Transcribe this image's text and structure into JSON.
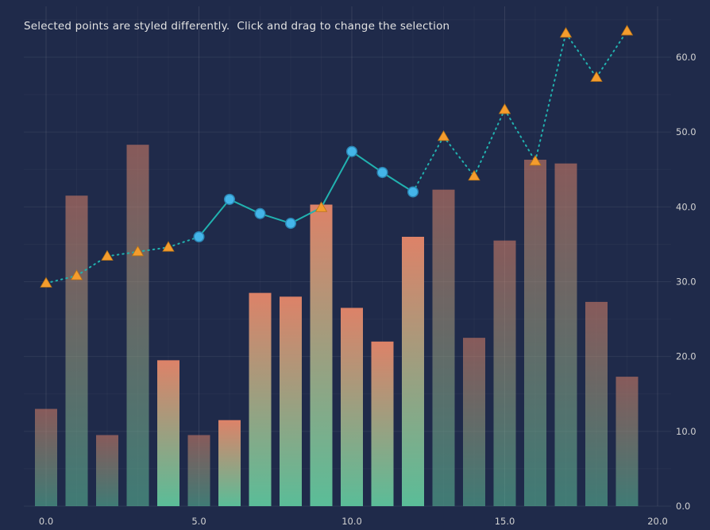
{
  "title": "Selected points are styled differently.  Click and drag to change the selection",
  "colors": {
    "background": "#1f2a4a",
    "grid_major": "rgba(255,255,255,0.07)",
    "grid_minor": "rgba(255,255,255,0.03)",
    "bar_top": "#dd8268",
    "bar_bottom": "#5abd98",
    "line": "#21b2b0",
    "circle_fill": "#44b5e9",
    "circle_stroke": "#2b86b4",
    "triangle_fill": "#f49c2d",
    "triangle_stroke": "#b87417",
    "axis_text": "#d2d2d2",
    "title_text": "#e2e2e2"
  },
  "chart_data": {
    "type": "bar",
    "title": "Selected points are styled differently.  Click and drag to change the selection",
    "xlabel": "",
    "ylabel": "",
    "xlim": [
      -1.5,
      21.7
    ],
    "ylim": [
      0,
      67.5
    ],
    "grid": true,
    "legend": false,
    "x": [
      0,
      1,
      2,
      3,
      4,
      5,
      6,
      7,
      8,
      9,
      10,
      11,
      12,
      13,
      14,
      15,
      16,
      17,
      18,
      19
    ],
    "bars": {
      "values": [
        13,
        41.5,
        9.5,
        48.3,
        19.5,
        9.5,
        11.5,
        28.5,
        28,
        40.3,
        26.5,
        22,
        36,
        42.3,
        22.5,
        35.5,
        46.3,
        45.8,
        27.3,
        17.3
      ],
      "selected_indices": [
        4,
        6,
        7,
        8,
        9,
        10,
        11,
        12
      ],
      "unselected_opacity": 0.55
    },
    "line": {
      "type": "line+markers",
      "values": [
        29.8,
        30.8,
        33.4,
        34.0,
        34.6,
        36.0,
        41.0,
        39.1,
        37.8,
        39.9,
        47.4,
        44.6,
        42.0,
        49.4,
        44.1,
        53.0,
        46.1,
        63.2,
        57.3,
        63.5
      ],
      "circle_marker_indices": [
        5,
        6,
        7,
        8,
        10,
        11,
        12
      ],
      "triangle_marker_indices": [
        0,
        1,
        2,
        3,
        4,
        9,
        13,
        14,
        15,
        16,
        17,
        18,
        19
      ],
      "solid_segment_start": 5,
      "solid_segment_end": 12
    },
    "x_ticks": [
      {
        "value": 0,
        "label": "0.0"
      },
      {
        "value": 5,
        "label": "5.0"
      },
      {
        "value": 10,
        "label": "10.0"
      },
      {
        "value": 15,
        "label": "15.0"
      },
      {
        "value": 20,
        "label": "20.0"
      }
    ],
    "y_ticks": [
      {
        "value": 0,
        "label": "0.0"
      },
      {
        "value": 10,
        "label": "10.0"
      },
      {
        "value": 20,
        "label": "20.0"
      },
      {
        "value": 30,
        "label": "30.0"
      },
      {
        "value": 40,
        "label": "40.0"
      },
      {
        "value": 50,
        "label": "50.0"
      },
      {
        "value": 60,
        "label": "60.0"
      }
    ]
  }
}
